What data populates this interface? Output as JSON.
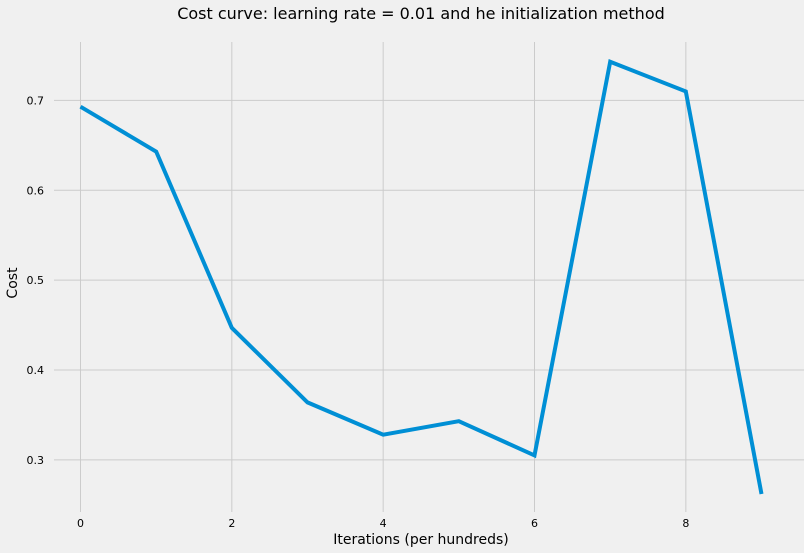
{
  "chart_data": {
    "type": "line",
    "title": "Cost curve: learning rate = 0.01 and he initialization method",
    "xlabel": "Iterations (per hundreds)",
    "ylabel": "Cost",
    "x": [
      0,
      1,
      2,
      3,
      4,
      5,
      6,
      7,
      8,
      9
    ],
    "series": [
      {
        "values": [
          0.693,
          0.643,
          0.447,
          0.364,
          0.328,
          0.343,
          0.305,
          0.743,
          0.71,
          0.262
        ]
      }
    ],
    "xlim": [
      -0.35,
      9.35
    ],
    "ylim": [
      0.242,
      0.765
    ],
    "xticks": [
      0,
      2,
      4,
      6,
      8
    ],
    "yticks": [
      0.3,
      0.4,
      0.5,
      0.6,
      0.7
    ],
    "xtick_labels": [
      "0",
      "2",
      "4",
      "6",
      "8"
    ],
    "ytick_labels": [
      "0.3",
      "0.4",
      "0.5",
      "0.6",
      "0.7"
    ],
    "grid": true,
    "colors": {
      "background": "#f0f0f0",
      "grid": "#cbcbcb",
      "line": "#008fd5"
    }
  }
}
